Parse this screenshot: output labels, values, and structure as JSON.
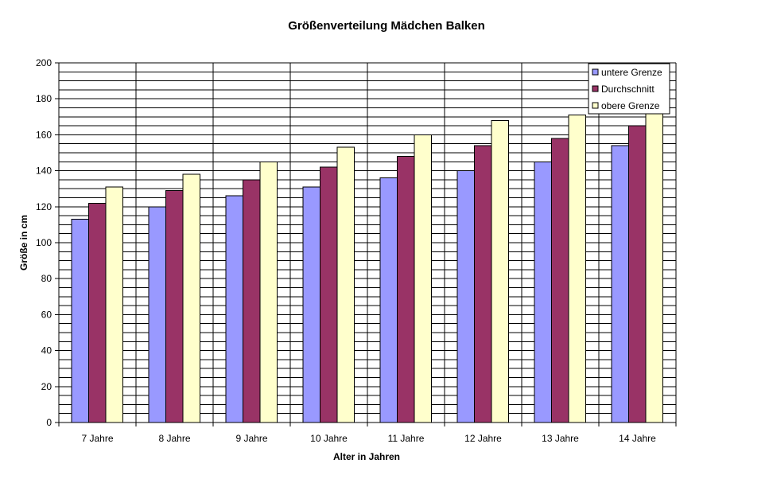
{
  "chart_data": {
    "type": "bar",
    "title": "Größenverteilung Mädchen Balken",
    "xlabel": "Alter in Jahren",
    "ylabel": "Größe in cm",
    "ylim": [
      0,
      200
    ],
    "yticks": [
      0,
      20,
      40,
      60,
      80,
      100,
      120,
      140,
      160,
      180,
      200
    ],
    "minor_grid_step": 5,
    "grid": true,
    "legend_position": "top-right",
    "categories": [
      "7 Jahre",
      "8 Jahre",
      "9 Jahre",
      "10 Jahre",
      "11 Jahre",
      "12 Jahre",
      "13 Jahre",
      "14 Jahre"
    ],
    "series": [
      {
        "name": "untere Grenze",
        "color": "#9999FF",
        "values": [
          113,
          120,
          126,
          131,
          136,
          140,
          145,
          154
        ]
      },
      {
        "name": "Durchschnitt",
        "color": "#993366",
        "values": [
          122,
          129,
          135,
          142,
          148,
          154,
          158,
          165
        ]
      },
      {
        "name": "obere Grenze",
        "color": "#FFFFCC",
        "values": [
          131,
          138,
          145,
          153,
          160,
          168,
          171,
          174
        ]
      }
    ]
  }
}
